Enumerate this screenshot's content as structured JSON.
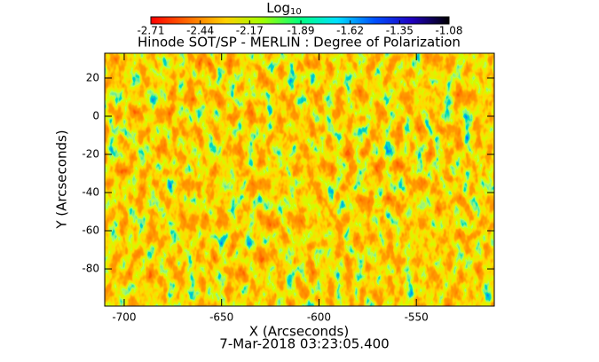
{
  "chart_data": {
    "type": "heatmap",
    "title": "Hinode SOT/SP - MERLIN : Degree of Polarization",
    "x_label": "X (Arcseconds)",
    "y_label": "Y (Arcseconds)",
    "date": "7-Mar-2018 03:23:05.400",
    "xlim": [
      -710,
      -510
    ],
    "xticks": [
      -700,
      -650,
      -600,
      -550
    ],
    "ylim": [
      -99.5,
      33
    ],
    "yticks": [
      -80,
      -60,
      -40,
      -20,
      0,
      20
    ],
    "colorbar": {
      "label": "Log",
      "label_subscript": "10",
      "lim": [
        -2.71,
        -1.08
      ],
      "ticks": [
        -2.71,
        -2.44,
        -2.17,
        -1.89,
        -1.62,
        -1.35,
        -1.08
      ],
      "colors": [
        "#ff0000",
        "#ff6a00",
        "#ffd000",
        "#a0ff00",
        "#00ff80",
        "#00e0ff",
        "#0050ff",
        "#2000c0",
        "#000000"
      ]
    }
  }
}
